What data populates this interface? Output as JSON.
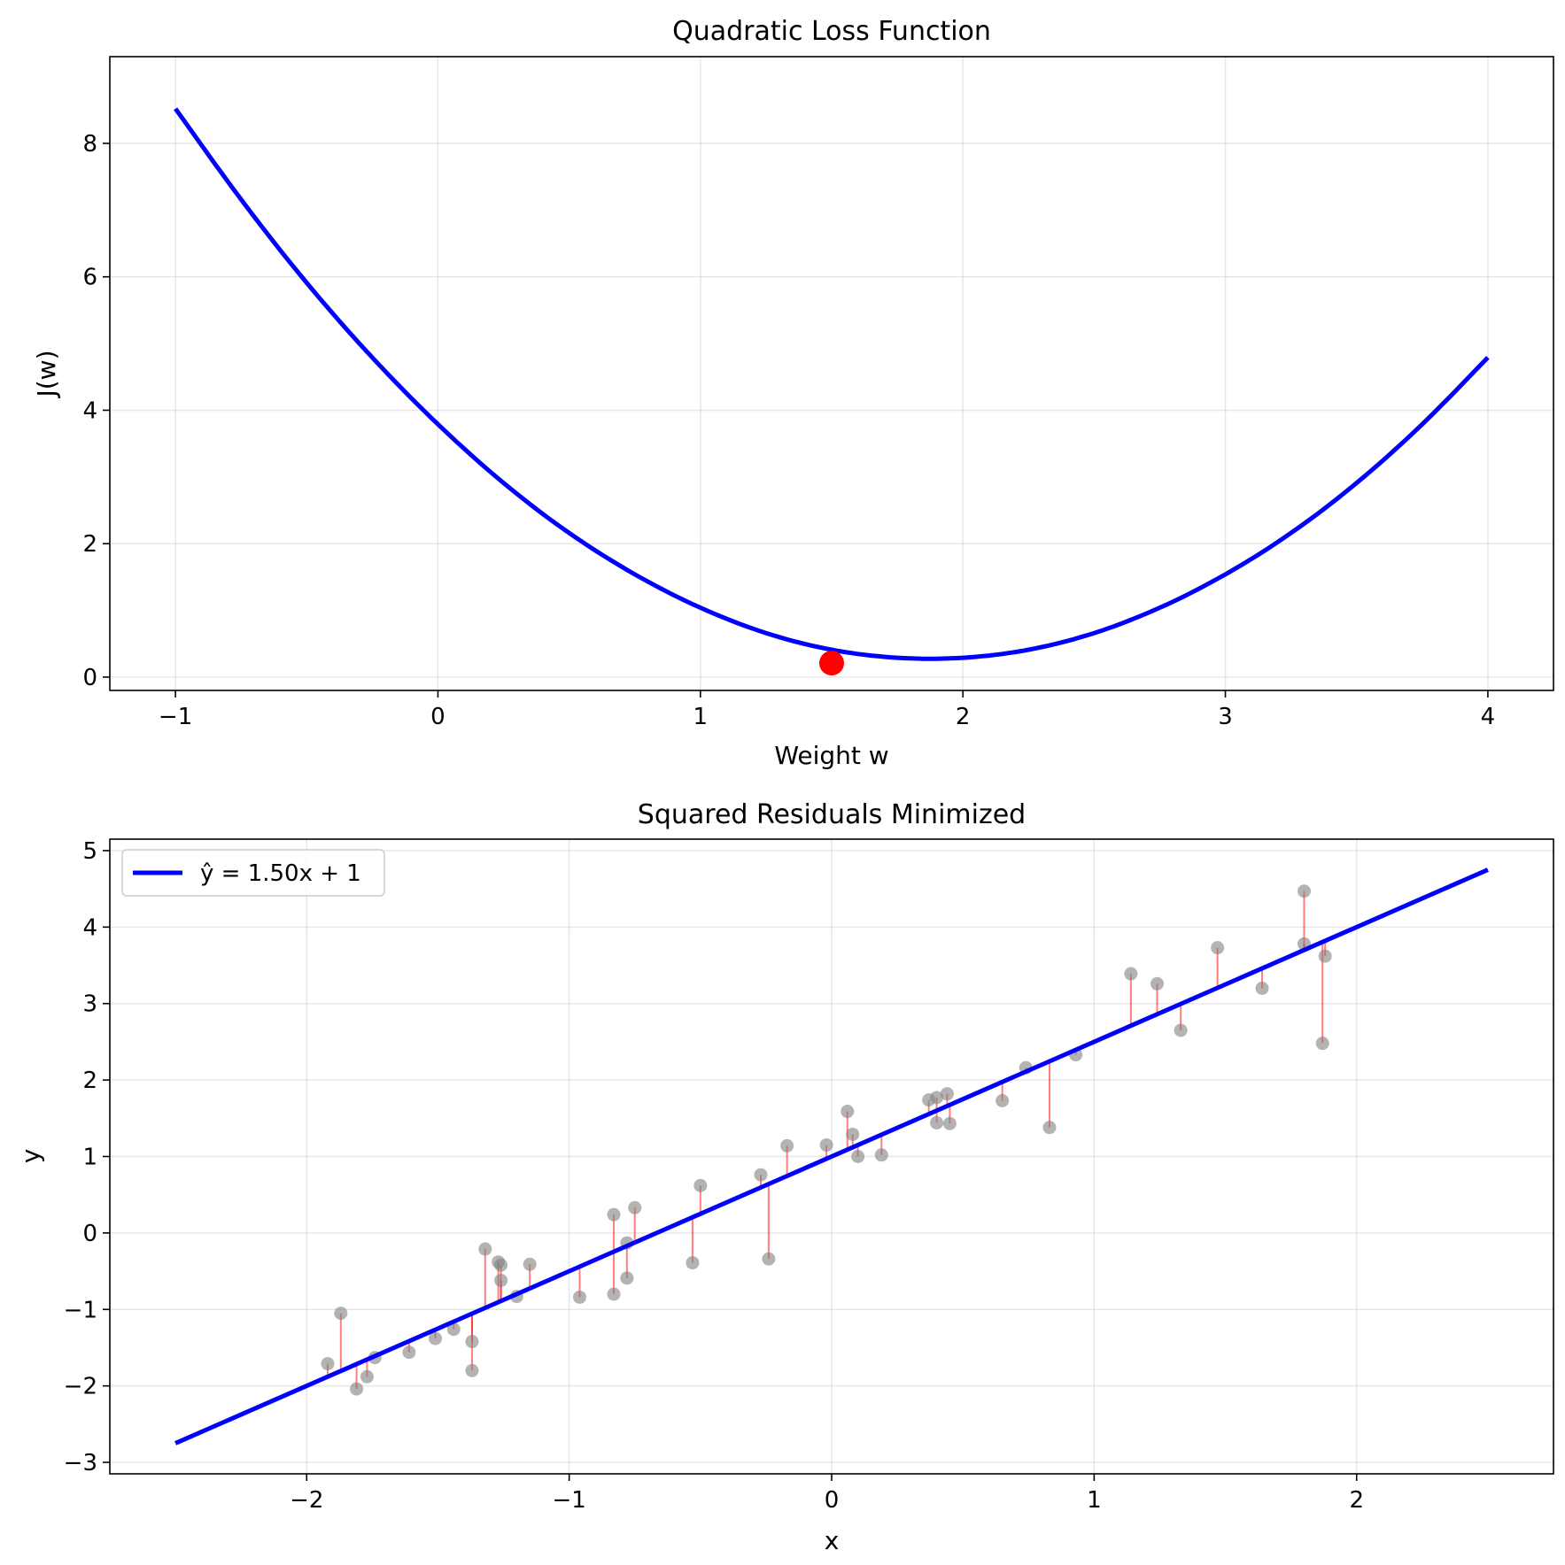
{
  "chart_data": [
    {
      "type": "line",
      "title": "Quadratic Loss Function",
      "xlabel": "Weight w",
      "ylabel": "J(w)",
      "xlim": [
        -1.25,
        4.25
      ],
      "ylim": [
        -0.2,
        9.3
      ],
      "xticks": [
        -1,
        0,
        1,
        2,
        3,
        4
      ],
      "xtick_labels": [
        "−1",
        "0",
        "1",
        "2",
        "3",
        "4"
      ],
      "yticks": [
        0,
        2,
        4,
        6,
        8
      ],
      "ytick_labels": [
        "0",
        "2",
        "4",
        "6",
        "8"
      ],
      "grid": true,
      "series": [
        {
          "color": "#0000ff",
          "x": [
            -1.0,
            -0.75,
            -0.5,
            -0.25,
            0.0,
            0.25,
            0.5,
            0.75,
            1.0,
            1.25,
            1.5,
            1.75,
            2.0,
            2.25,
            2.5,
            2.75,
            3.0,
            3.25,
            3.5,
            3.75,
            4.0
          ],
          "y": [
            8.52,
            7.16,
            5.91,
            4.79,
            3.79,
            2.91,
            2.16,
            1.54,
            1.04,
            0.66,
            0.41,
            0.29,
            0.29,
            0.41,
            0.66,
            1.04,
            1.54,
            2.16,
            2.91,
            3.79,
            4.79
          ]
        }
      ],
      "marker": {
        "x": 1.5,
        "y": 0.21,
        "color": "#ff0000"
      }
    },
    {
      "type": "scatter",
      "title": "Squared Residuals Minimized",
      "xlabel": "x",
      "ylabel": "y",
      "xlim": [
        -2.75,
        2.75
      ],
      "ylim": [
        -3.15,
        5.15
      ],
      "xticks": [
        -2,
        -1,
        0,
        1,
        2
      ],
      "xtick_labels": [
        "−2",
        "−1",
        "0",
        "1",
        "2"
      ],
      "yticks": [
        -3,
        -2,
        -1,
        0,
        1,
        2,
        3,
        4,
        5
      ],
      "ytick_labels": [
        "−3",
        "−2",
        "−1",
        "0",
        "1",
        "2",
        "3",
        "4",
        "5"
      ],
      "grid": true,
      "legend_position": "top-left",
      "legend": [
        "ŷ = 1.50x + 1"
      ],
      "fit_line": {
        "slope": 1.5,
        "intercept": 1,
        "x_range": [
          -2.5,
          2.5
        ],
        "color": "#0000ff"
      },
      "point_color": "#808080",
      "residual_color": "#ff0000",
      "points": [
        [
          -1.92,
          -1.71
        ],
        [
          -1.87,
          -1.05
        ],
        [
          -1.81,
          -2.04
        ],
        [
          -1.77,
          -1.88
        ],
        [
          -1.74,
          -1.63
        ],
        [
          -1.61,
          -1.56
        ],
        [
          -1.51,
          -1.38
        ],
        [
          -1.44,
          -1.26
        ],
        [
          -1.37,
          -1.42
        ],
        [
          -1.37,
          -1.8
        ],
        [
          -1.32,
          -0.21
        ],
        [
          -1.27,
          -0.38
        ],
        [
          -1.26,
          -0.42
        ],
        [
          -1.26,
          -0.62
        ],
        [
          -1.2,
          -0.83
        ],
        [
          -1.15,
          -0.41
        ],
        [
          -0.96,
          -0.84
        ],
        [
          -0.83,
          0.24
        ],
        [
          -0.83,
          -0.8
        ],
        [
          -0.78,
          -0.13
        ],
        [
          -0.78,
          -0.59
        ],
        [
          -0.75,
          0.33
        ],
        [
          -0.53,
          -0.39
        ],
        [
          -0.5,
          0.62
        ],
        [
          -0.27,
          0.76
        ],
        [
          -0.24,
          -0.34
        ],
        [
          -0.17,
          1.14
        ],
        [
          -0.02,
          1.15
        ],
        [
          0.06,
          1.59
        ],
        [
          0.08,
          1.29
        ],
        [
          0.1,
          1.0
        ],
        [
          0.19,
          1.02
        ],
        [
          0.37,
          1.74
        ],
        [
          0.4,
          1.44
        ],
        [
          0.4,
          1.77
        ],
        [
          0.44,
          1.82
        ],
        [
          0.45,
          1.43
        ],
        [
          0.65,
          1.73
        ],
        [
          0.74,
          2.16
        ],
        [
          0.83,
          1.38
        ],
        [
          0.93,
          2.33
        ],
        [
          1.14,
          3.39
        ],
        [
          1.24,
          3.26
        ],
        [
          1.33,
          2.65
        ],
        [
          1.47,
          3.73
        ],
        [
          1.64,
          3.2
        ],
        [
          1.8,
          4.47
        ],
        [
          1.8,
          3.78
        ],
        [
          1.87,
          2.48
        ],
        [
          1.88,
          3.62
        ]
      ]
    }
  ]
}
